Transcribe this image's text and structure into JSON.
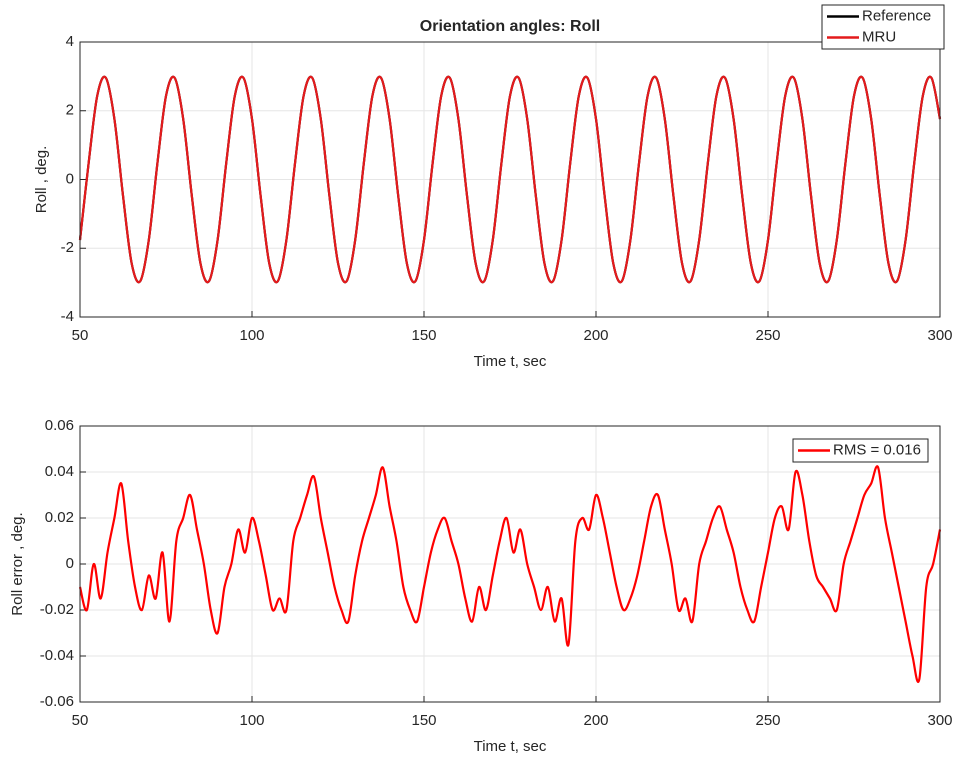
{
  "chart_data": [
    {
      "type": "line",
      "title": "Orientation angles: Roll",
      "xlabel": "Time  t, sec",
      "ylabel": "Roll , deg.",
      "x": [
        50,
        52.5,
        55,
        57.5,
        60,
        62.5,
        65,
        67.5,
        70,
        72.5,
        75,
        77.5,
        80,
        82.5,
        85,
        87.5,
        90,
        92.5,
        95,
        97.5,
        100,
        102.5,
        105,
        107.5,
        110,
        112.5,
        115,
        117.5,
        120,
        122.5,
        125,
        127.5,
        130,
        132.5,
        135,
        137.5,
        140,
        142.5,
        145,
        147.5,
        150,
        152.5,
        155,
        157.5,
        160,
        162.5,
        165,
        167.5,
        170,
        172.5,
        175,
        177.5,
        180,
        182.5,
        185,
        187.5,
        190,
        192.5,
        195,
        197.5,
        200,
        202.5,
        205,
        207.5,
        210,
        212.5,
        215,
        217.5,
        220,
        222.5,
        225,
        227.5,
        230,
        232.5,
        235,
        237.5,
        240,
        242.5,
        245,
        247.5,
        250,
        252.5,
        255,
        257.5,
        260,
        262.5,
        265,
        267.5,
        270,
        272.5,
        275,
        277.5,
        280,
        282.5,
        285,
        287.5,
        290,
        292.5,
        295,
        297.5,
        300
      ],
      "series": [
        {
          "name": "Reference",
          "color": "#000000",
          "values": [
            -1.76,
            0.47,
            2.43,
            2.96,
            1.76,
            -0.47,
            -2.43,
            -2.96,
            -1.76,
            0.47,
            2.43,
            2.96,
            1.76,
            -0.47,
            -2.43,
            -2.96,
            -1.76,
            0.47,
            2.43,
            2.96,
            1.76,
            -0.47,
            -2.43,
            -2.96,
            -1.76,
            0.47,
            2.43,
            2.96,
            1.76,
            -0.47,
            -2.43,
            -2.96,
            -1.76,
            0.47,
            2.43,
            2.96,
            1.76,
            -0.47,
            -2.43,
            -2.96,
            -1.76,
            0.47,
            2.43,
            2.96,
            1.76,
            -0.47,
            -2.43,
            -2.96,
            -1.76,
            0.47,
            2.43,
            2.96,
            1.76,
            -0.47,
            -2.43,
            -2.96,
            -1.76,
            0.47,
            2.43,
            2.96,
            1.76,
            -0.47,
            -2.43,
            -2.96,
            -1.76,
            0.47,
            2.43,
            2.96,
            1.76,
            -0.47,
            -2.43,
            -2.96,
            -1.76,
            0.47,
            2.43,
            2.96,
            1.76,
            -0.47,
            -2.43,
            -2.96,
            -1.76,
            0.47,
            2.43,
            2.96,
            1.76,
            -0.47,
            -2.43,
            -2.96,
            -1.76,
            0.47,
            2.43,
            2.96,
            1.76,
            -0.47,
            -2.43,
            -2.96,
            -1.76,
            0.47,
            2.43,
            2.96,
            1.76
          ]
        },
        {
          "name": "MRU",
          "color": "#e41a1c",
          "values": [
            -1.76,
            0.47,
            2.43,
            2.96,
            1.76,
            -0.47,
            -2.43,
            -2.96,
            -1.76,
            0.47,
            2.43,
            2.96,
            1.76,
            -0.47,
            -2.43,
            -2.96,
            -1.76,
            0.47,
            2.43,
            2.96,
            1.76,
            -0.47,
            -2.43,
            -2.96,
            -1.76,
            0.47,
            2.43,
            2.96,
            1.76,
            -0.47,
            -2.43,
            -2.96,
            -1.76,
            0.47,
            2.43,
            2.96,
            1.76,
            -0.47,
            -2.43,
            -2.96,
            -1.76,
            0.47,
            2.43,
            2.96,
            1.76,
            -0.47,
            -2.43,
            -2.96,
            -1.76,
            0.47,
            2.43,
            2.96,
            1.76,
            -0.47,
            -2.43,
            -2.96,
            -1.76,
            0.47,
            2.43,
            2.96,
            1.76,
            -0.47,
            -2.43,
            -2.96,
            -1.76,
            0.47,
            2.43,
            2.96,
            1.76,
            -0.47,
            -2.43,
            -2.96,
            -1.76,
            0.47,
            2.43,
            2.96,
            1.76,
            -0.47,
            -2.43,
            -2.96,
            -1.76,
            0.47,
            2.43,
            2.96,
            1.76,
            -0.47,
            -2.43,
            -2.96,
            -1.76,
            0.47,
            2.43,
            2.96,
            1.76,
            -0.47,
            -2.43,
            -2.96,
            -1.76,
            0.47,
            2.43,
            2.96,
            1.76
          ]
        }
      ],
      "xlim": [
        50,
        300
      ],
      "ylim": [
        -4,
        4
      ],
      "xticks": [
        50,
        100,
        150,
        200,
        250,
        300
      ],
      "yticks": [
        -4,
        -2,
        0,
        2,
        4
      ],
      "grid": true,
      "legend": "outside upper right"
    },
    {
      "type": "line",
      "xlabel": "Time  t, sec",
      "ylabel": "Roll error , deg.",
      "x": [
        50,
        52,
        54,
        56,
        58,
        60,
        62,
        64,
        66,
        68,
        70,
        72,
        74,
        76,
        78,
        80,
        82,
        84,
        86,
        88,
        90,
        92,
        94,
        96,
        98,
        100,
        102,
        104,
        106,
        108,
        110,
        112,
        114,
        116,
        118,
        120,
        122,
        124,
        126,
        128,
        130,
        132,
        134,
        136,
        138,
        140,
        142,
        144,
        146,
        148,
        150,
        152,
        154,
        156,
        158,
        160,
        162,
        164,
        166,
        168,
        170,
        172,
        174,
        176,
        178,
        180,
        182,
        184,
        186,
        188,
        190,
        192,
        194,
        196,
        198,
        200,
        202,
        204,
        206,
        208,
        210,
        212,
        214,
        216,
        218,
        220,
        222,
        224,
        226,
        228,
        230,
        232,
        234,
        236,
        238,
        240,
        242,
        244,
        246,
        248,
        250,
        252,
        254,
        256,
        258,
        260,
        262,
        264,
        266,
        268,
        270,
        272,
        274,
        276,
        278,
        280,
        282,
        284,
        286,
        288,
        290,
        292,
        294,
        296,
        298,
        300
      ],
      "series": [
        {
          "name": "RMS = 0.016",
          "color": "#ff0000",
          "values": [
            -0.01,
            -0.02,
            0.0,
            -0.015,
            0.005,
            0.02,
            0.035,
            0.01,
            -0.01,
            -0.02,
            -0.005,
            -0.015,
            0.005,
            -0.025,
            0.01,
            0.02,
            0.03,
            0.015,
            0.0,
            -0.02,
            -0.03,
            -0.01,
            0.0,
            0.015,
            0.005,
            0.02,
            0.01,
            -0.005,
            -0.02,
            -0.015,
            -0.02,
            0.01,
            0.02,
            0.03,
            0.038,
            0.02,
            0.005,
            -0.01,
            -0.02,
            -0.025,
            -0.005,
            0.01,
            0.02,
            0.03,
            0.042,
            0.025,
            0.01,
            -0.01,
            -0.02,
            -0.025,
            -0.01,
            0.005,
            0.015,
            0.02,
            0.01,
            0.0,
            -0.015,
            -0.025,
            -0.01,
            -0.02,
            -0.005,
            0.01,
            0.02,
            0.005,
            0.015,
            0.0,
            -0.01,
            -0.02,
            -0.01,
            -0.025,
            -0.015,
            -0.035,
            0.01,
            0.02,
            0.015,
            0.03,
            0.02,
            0.005,
            -0.01,
            -0.02,
            -0.015,
            -0.005,
            0.01,
            0.025,
            0.03,
            0.015,
            0.0,
            -0.02,
            -0.015,
            -0.025,
            0.0,
            0.01,
            0.02,
            0.025,
            0.015,
            0.005,
            -0.01,
            -0.02,
            -0.025,
            -0.01,
            0.005,
            0.02,
            0.025,
            0.015,
            0.04,
            0.03,
            0.01,
            -0.005,
            -0.01,
            -0.015,
            -0.02,
            0.0,
            0.01,
            0.02,
            0.03,
            0.035,
            0.042,
            0.02,
            0.005,
            -0.01,
            -0.025,
            -0.04,
            -0.05,
            -0.01,
            0.0,
            0.015
          ]
        }
      ],
      "xlim": [
        50,
        300
      ],
      "ylim": [
        -0.06,
        0.06
      ],
      "xticks": [
        50,
        100,
        150,
        200,
        250,
        300
      ],
      "yticks": [
        -0.06,
        -0.04,
        -0.02,
        0,
        0.02,
        0.04,
        0.06
      ],
      "grid": true,
      "legend": "upper right"
    }
  ]
}
